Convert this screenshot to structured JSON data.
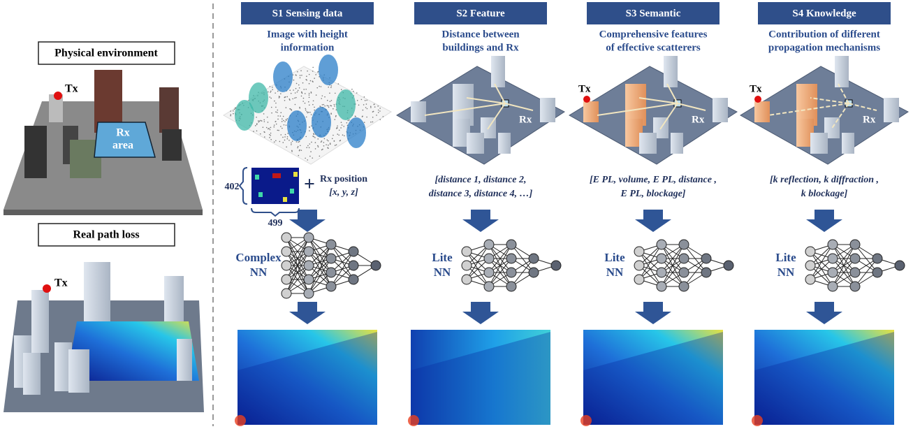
{
  "left": {
    "physical_title": "Physical environment",
    "tx": "Tx",
    "rx_area": [
      "Rx",
      "area"
    ],
    "real_title": "Real path loss",
    "tx2": "Tx"
  },
  "stages": [
    {
      "header": "S1 Sensing data",
      "caption": [
        "Image with height",
        "information"
      ],
      "rx_position": "Rx position",
      "rx_coords": "[x, y, z]",
      "plus": "+",
      "dim_h": "402",
      "dim_w": "499",
      "nn": [
        "Complex",
        "NN"
      ]
    },
    {
      "header": "S2 Feature",
      "caption": [
        "Distance between",
        "buildings and Rx"
      ],
      "scene_rx": "Rx",
      "input": [
        "[distance 1, distance 2,",
        "distance 3, distance 4, …]"
      ],
      "nn": [
        "Lite",
        "NN"
      ]
    },
    {
      "header": "S3 Semantic",
      "caption": [
        "Comprehensive features",
        "of effective scatterers"
      ],
      "scene_tx": "Tx",
      "scene_rx": "Rx",
      "input": [
        "[E PL, volume, E PL, distance ,",
        "E PL, blockage]"
      ],
      "nn": [
        "Lite",
        "NN"
      ]
    },
    {
      "header": "S4 Knowledge",
      "caption": [
        "Contribution of different",
        "propagation mechanisms"
      ],
      "scene_tx": "Tx",
      "scene_rx": "Rx",
      "input": [
        "[k reflection, k diffraction ,",
        "k blockage]"
      ],
      "nn": [
        "Lite",
        "NN"
      ]
    }
  ]
}
